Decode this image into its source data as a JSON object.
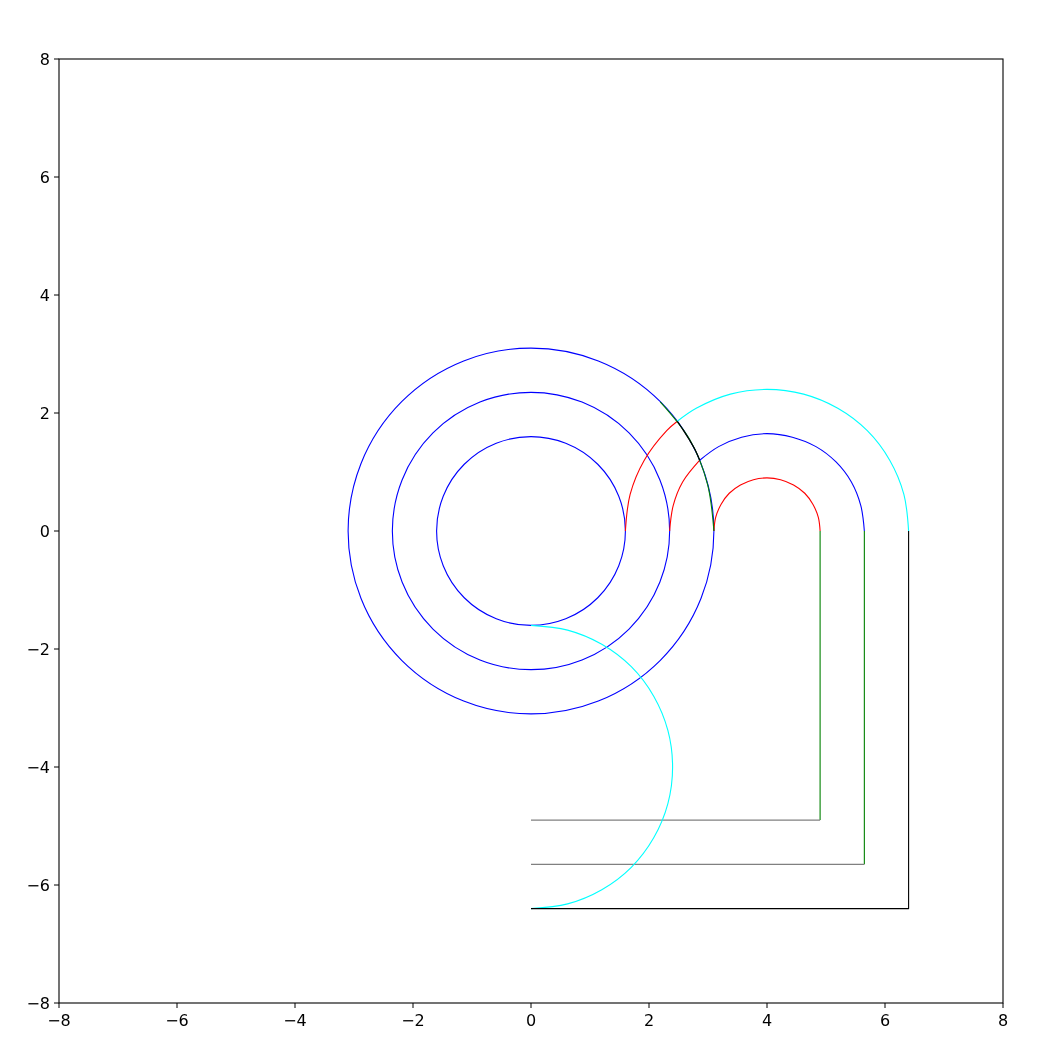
{
  "chart_data": {
    "type": "line",
    "xlim": [
      -8,
      8
    ],
    "ylim": [
      -8,
      8
    ],
    "xticks": [
      {
        "value": -8,
        "label": "−8"
      },
      {
        "value": -6,
        "label": "−6"
      },
      {
        "value": -4,
        "label": "−4"
      },
      {
        "value": -2,
        "label": "−2"
      },
      0,
      2,
      4,
      6,
      8
    ],
    "yticks": [
      {
        "value": -8,
        "label": "−8"
      },
      {
        "value": -6,
        "label": "−6"
      },
      {
        "value": -4,
        "label": "−4"
      },
      {
        "value": -2,
        "label": "−2"
      },
      0,
      2,
      4,
      6,
      8
    ],
    "grid": false,
    "series": [
      {
        "color": "#ff0000",
        "x": [
          1.6,
          1.68,
          1.92,
          2.3,
          2.48
        ],
        "values": [
          0,
          0.62,
          1.2,
          1.7,
          1.86
        ]
      },
      {
        "color": "#ff0000",
        "x": [
          2.35,
          2.41,
          2.57,
          2.86
        ],
        "values": [
          0,
          0.43,
          0.83,
          1.2
        ]
      },
      {
        "color": "#ff0000",
        "x": [
          3.1,
          3.13,
          3.22,
          3.36,
          3.55,
          3.77,
          4,
          4.23,
          4.45,
          4.64,
          4.78,
          4.87,
          4.9
        ],
        "values": [
          0,
          0.23,
          0.45,
          0.64,
          0.78,
          0.87,
          0.9,
          0.87,
          0.78,
          0.64,
          0.45,
          0.23,
          0
        ]
      },
      {
        "color": "#008000",
        "x": [
          3.1,
          2.99,
          2.69,
          2.19
        ],
        "values": [
          0,
          0.8,
          1.55,
          2.19
        ]
      },
      {
        "color": "#008000",
        "x": [
          4.9,
          4.9
        ],
        "values": [
          0,
          -4.9
        ]
      },
      {
        "color": "#008000",
        "x": [
          5.65,
          5.65
        ],
        "values": [
          0,
          -5.65
        ]
      },
      {
        "color": "#808080",
        "x": [
          0,
          4.9
        ],
        "values": [
          -4.9,
          -4.9
        ]
      },
      {
        "color": "#808080",
        "x": [
          0,
          5.65
        ],
        "values": [
          -5.65,
          -5.65
        ]
      },
      {
        "color": "#00ffff",
        "x": [
          0,
          0.62,
          1.2,
          1.7,
          2.08,
          2.32,
          2.4,
          2.32,
          2.08,
          1.7,
          1.2,
          0.62,
          0
        ],
        "values": [
          -1.6,
          -1.68,
          -1.92,
          -2.3,
          -2.8,
          -3.38,
          -4,
          -4.62,
          -5.2,
          -5.7,
          -6.08,
          -6.32,
          -6.4
        ]
      },
      {
        "color": "#00ffff",
        "x": [
          2.48,
          2.8,
          3.38,
          4,
          4.62,
          5.2,
          5.7,
          6.08,
          6.32,
          6.4
        ],
        "values": [
          1.86,
          2.08,
          2.32,
          2.4,
          2.32,
          2.08,
          1.7,
          1.2,
          0.62,
          0
        ]
      },
      {
        "color": "#0000ff",
        "x": [
          2.86,
          3.18,
          3.57,
          4,
          4.43,
          4.83,
          5.17,
          5.43,
          5.59,
          5.65
        ],
        "values": [
          1.2,
          1.43,
          1.59,
          1.65,
          1.59,
          1.43,
          1.17,
          0.83,
          0.43,
          0
        ]
      },
      {
        "color": "#000000",
        "x": [
          2.86,
          2.79,
          2.68,
          2.58,
          2.48
        ],
        "values": [
          1.2,
          1.36,
          1.55,
          1.71,
          1.86
        ]
      },
      {
        "color": "#000000",
        "x": [
          0,
          6.4,
          6.4
        ],
        "values": [
          -6.4,
          -6.4,
          0
        ]
      }
    ]
  }
}
